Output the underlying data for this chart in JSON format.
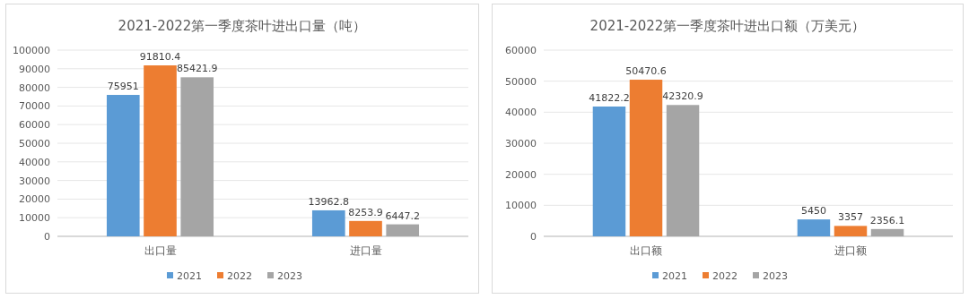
{
  "chart_data": [
    {
      "type": "bar",
      "title": "2021-2022第一季度茶叶进出口量（吨）",
      "categories": [
        "出口量",
        "进口量"
      ],
      "series": [
        {
          "name": "2021",
          "color": "#5b9bd5",
          "values": [
            75951,
            13962.8
          ]
        },
        {
          "name": "2022",
          "color": "#ed7d31",
          "values": [
            91810.4,
            8253.9
          ]
        },
        {
          "name": "2023",
          "color": "#a5a5a5",
          "values": [
            85421.9,
            6447.2
          ]
        }
      ],
      "ylim": [
        0,
        100000
      ],
      "yticks": [
        0,
        10000,
        20000,
        30000,
        40000,
        50000,
        60000,
        70000,
        80000,
        90000,
        100000
      ],
      "grid": "y",
      "legend": "bottom",
      "data_labels": true
    },
    {
      "type": "bar",
      "title": "2021-2022第一季度茶叶进出口额（万美元）",
      "categories": [
        "出口额",
        "进口额"
      ],
      "series": [
        {
          "name": "2021",
          "color": "#5b9bd5",
          "values": [
            41822.2,
            5450
          ]
        },
        {
          "name": "2022",
          "color": "#ed7d31",
          "values": [
            50470.6,
            3357
          ]
        },
        {
          "name": "2023",
          "color": "#a5a5a5",
          "values": [
            42320.9,
            2356.1
          ]
        }
      ],
      "ylim": [
        0,
        60000
      ],
      "yticks": [
        0,
        10000,
        20000,
        30000,
        40000,
        50000,
        60000
      ],
      "grid": "y",
      "legend": "bottom",
      "data_labels": true
    }
  ]
}
